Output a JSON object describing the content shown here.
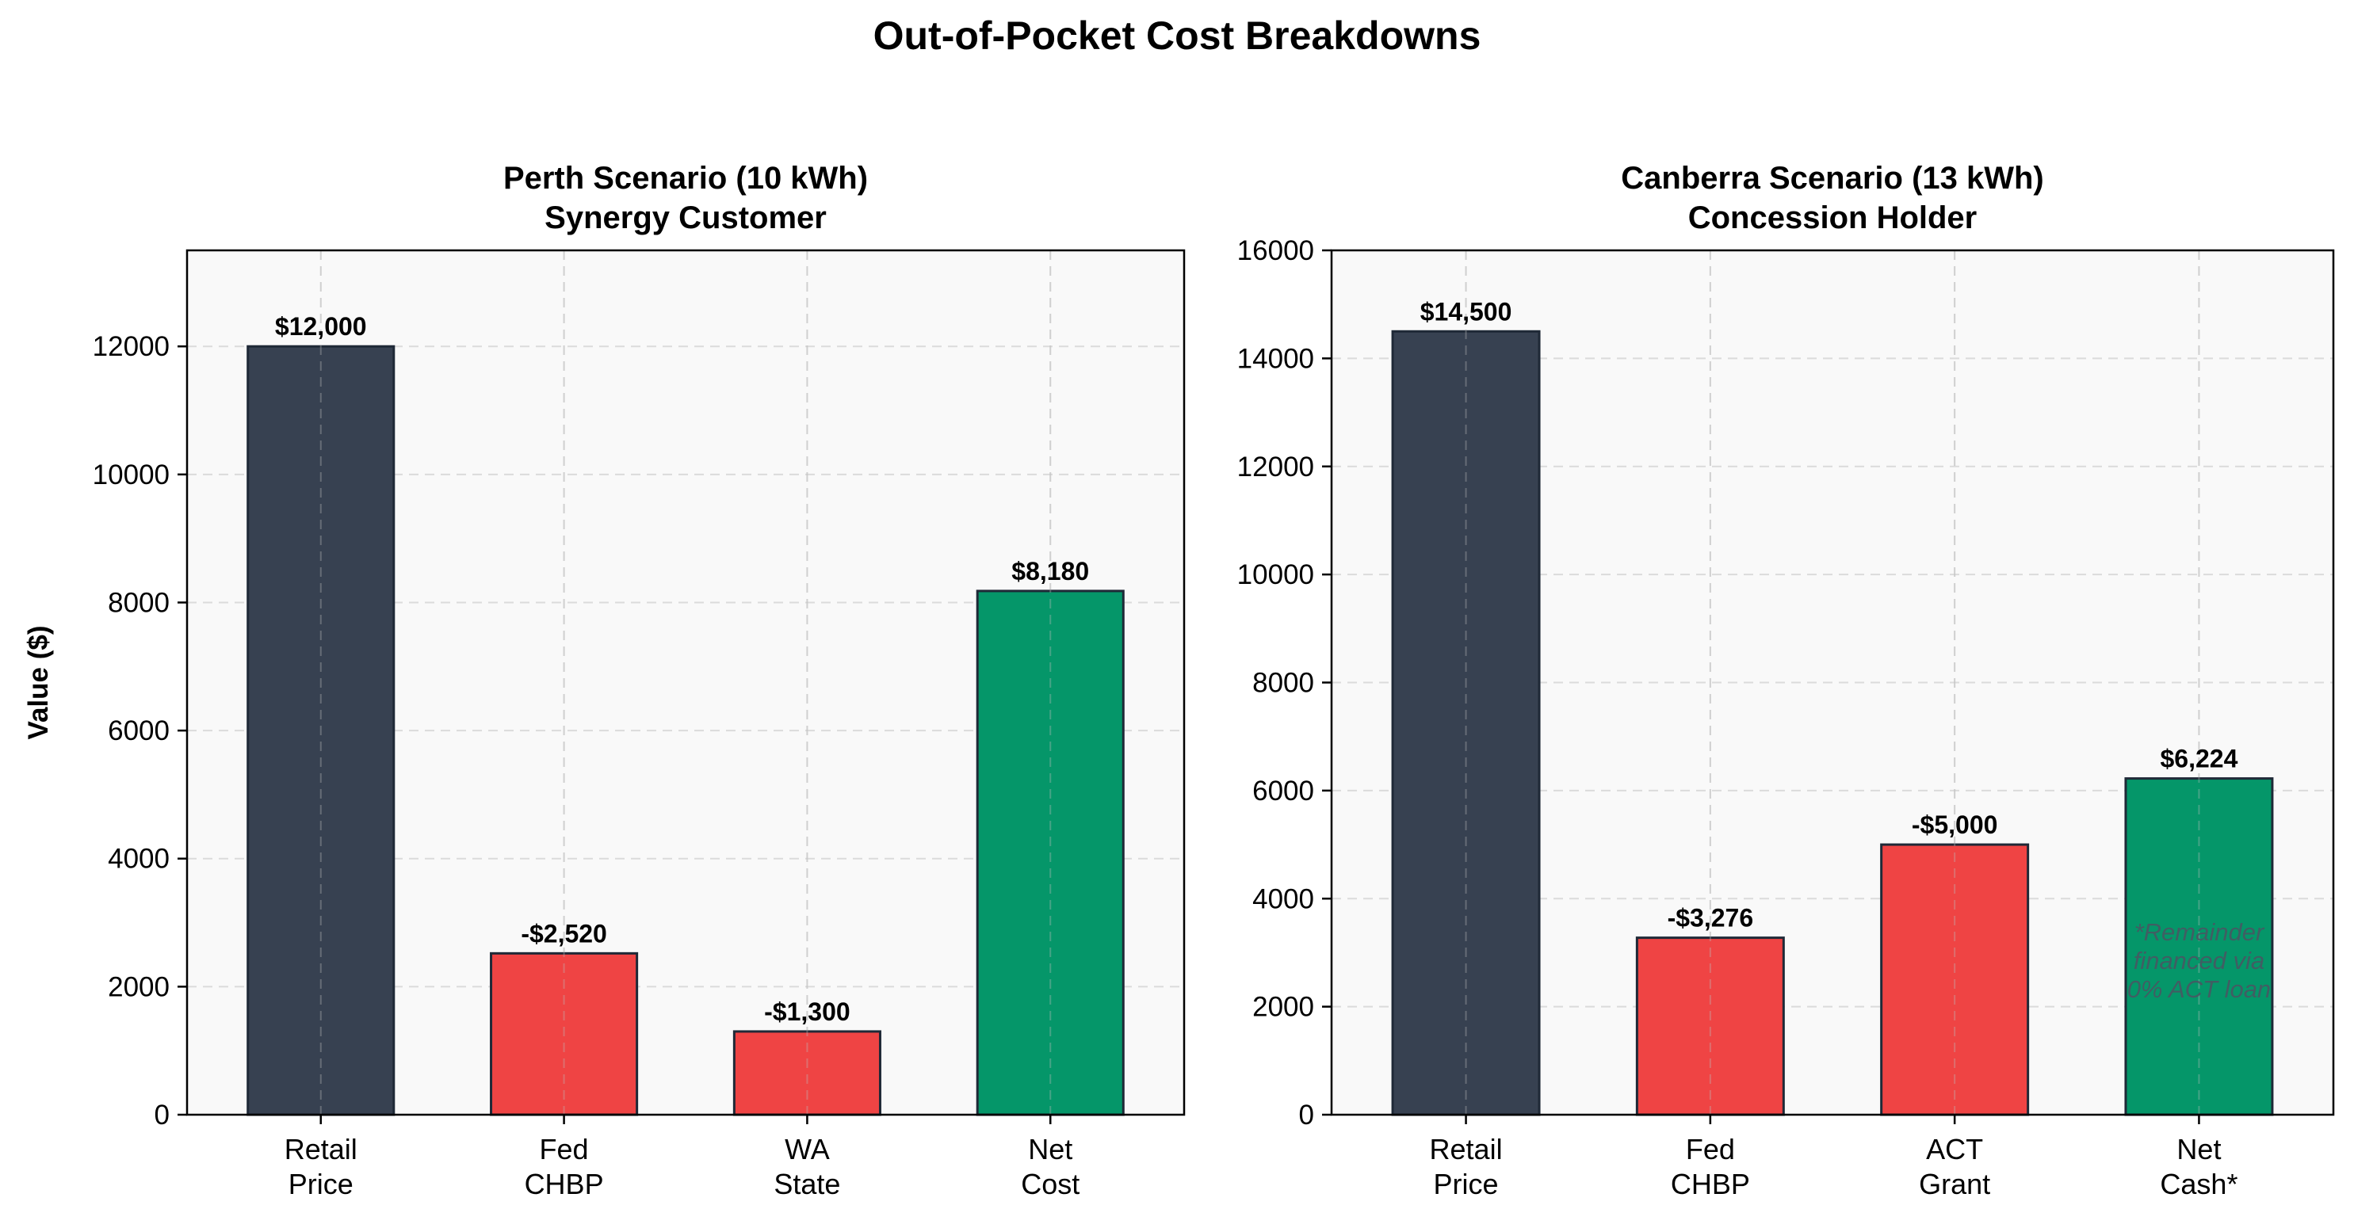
{
  "figure": {
    "title": "Out-of-Pocket Cost Breakdowns"
  },
  "colors": {
    "retail": "#374151",
    "deduction": "#ef4444",
    "net": "#059669",
    "plot_bg": "#f9f9f9",
    "edge": "#1f2937",
    "annotation": "#4b5563"
  },
  "chart_data": [
    {
      "type": "bar",
      "title": "Perth Scenario (10 kWh)",
      "subtitle": "Synergy Customer",
      "ylabel": "Value ($)",
      "xlabel": "",
      "ylim": [
        0,
        13500
      ],
      "yticks": [
        0,
        2000,
        4000,
        6000,
        8000,
        10000,
        12000
      ],
      "grid": true,
      "categories": [
        [
          "Retail",
          "Price"
        ],
        [
          "Fed",
          "CHBP"
        ],
        [
          "WA",
          "State"
        ],
        [
          "Net",
          "Cost"
        ]
      ],
      "values": [
        12000,
        2520,
        1300,
        8180
      ],
      "value_labels": [
        "$12,000",
        "-$2,520",
        "-$1,300",
        "$8,180"
      ],
      "bar_kinds": [
        "retail",
        "deduction",
        "deduction",
        "net"
      ],
      "annotation": null
    },
    {
      "type": "bar",
      "title": "Canberra Scenario (13 kWh)",
      "subtitle": "Concession Holder",
      "ylabel": "",
      "xlabel": "",
      "ylim": [
        0,
        16000
      ],
      "yticks": [
        0,
        2000,
        4000,
        6000,
        8000,
        10000,
        12000,
        14000,
        16000
      ],
      "grid": true,
      "categories": [
        [
          "Retail",
          "Price"
        ],
        [
          "Fed",
          "CHBP"
        ],
        [
          "ACT",
          "Grant"
        ],
        [
          "Net",
          "Cash*"
        ]
      ],
      "values": [
        14500,
        3276,
        5000,
        6224
      ],
      "value_labels": [
        "$14,500",
        "-$3,276",
        "-$5,000",
        "$6,224"
      ],
      "bar_kinds": [
        "retail",
        "deduction",
        "deduction",
        "net"
      ],
      "annotation": {
        "lines": [
          "*Remainder",
          "financed via",
          "0% ACT loan"
        ],
        "bar_index": 3,
        "y": 2700
      }
    }
  ]
}
